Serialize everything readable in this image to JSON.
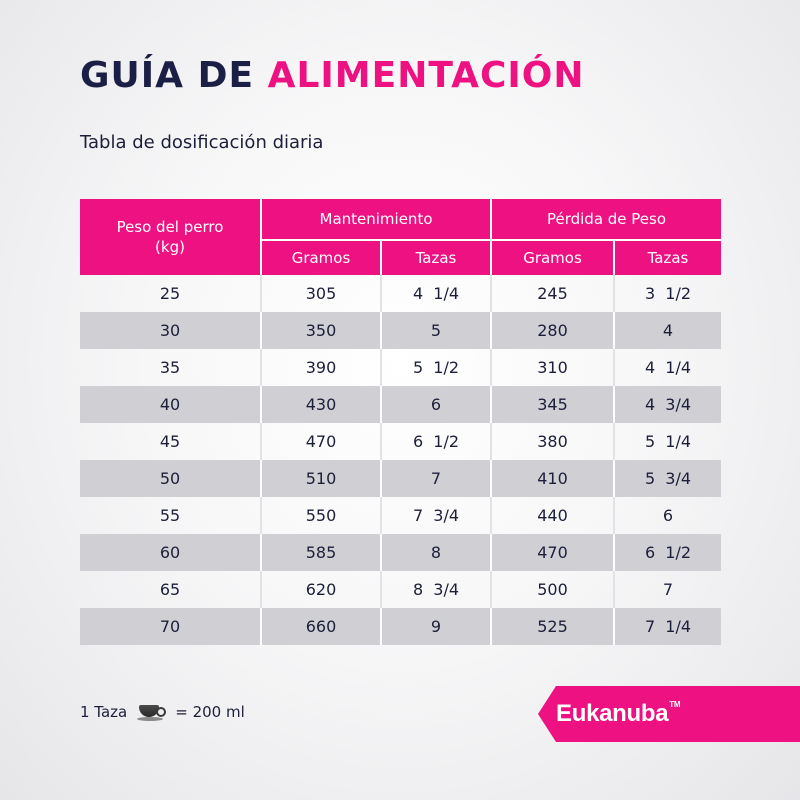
{
  "title": {
    "part1": "GUÍA DE",
    "part2": "ALIMENTACIÓN"
  },
  "subtitle": "Tabla de dosificación diaria",
  "table": {
    "header": {
      "weight_line1": "Peso del perro",
      "weight_line2": "(kg)",
      "group1": "Mantenimiento",
      "group2": "Pérdida de Peso",
      "sub": [
        "Gramos",
        "Tazas",
        "Gramos",
        "Tazas"
      ]
    },
    "rows": [
      [
        "25",
        "305",
        "4  1/4",
        "245",
        "3  1/2"
      ],
      [
        "30",
        "350",
        "5",
        "280",
        "4"
      ],
      [
        "35",
        "390",
        "5  1/2",
        "310",
        "4  1/4"
      ],
      [
        "40",
        "430",
        "6",
        "345",
        "4  3/4"
      ],
      [
        "45",
        "470",
        "6  1/2",
        "380",
        "5  1/4"
      ],
      [
        "50",
        "510",
        "7",
        "410",
        "5  3/4"
      ],
      [
        "55",
        "550",
        "7  3/4",
        "440",
        "6"
      ],
      [
        "60",
        "585",
        "8",
        "470",
        "6  1/2"
      ],
      [
        "65",
        "620",
        "8  3/4",
        "500",
        "7"
      ],
      [
        "70",
        "660",
        "9",
        "525",
        "7  1/4"
      ]
    ]
  },
  "footer": {
    "cup_text": "1 Taza",
    "equals_text": "= 200 ml",
    "cup_icon": "coffee-cup-icon"
  },
  "brand": {
    "name": "Eukanuba",
    "tm": "TM"
  },
  "colors": {
    "accent": "#ee1181",
    "navy": "#1b1f45",
    "stripe": "#cfcfd4"
  }
}
